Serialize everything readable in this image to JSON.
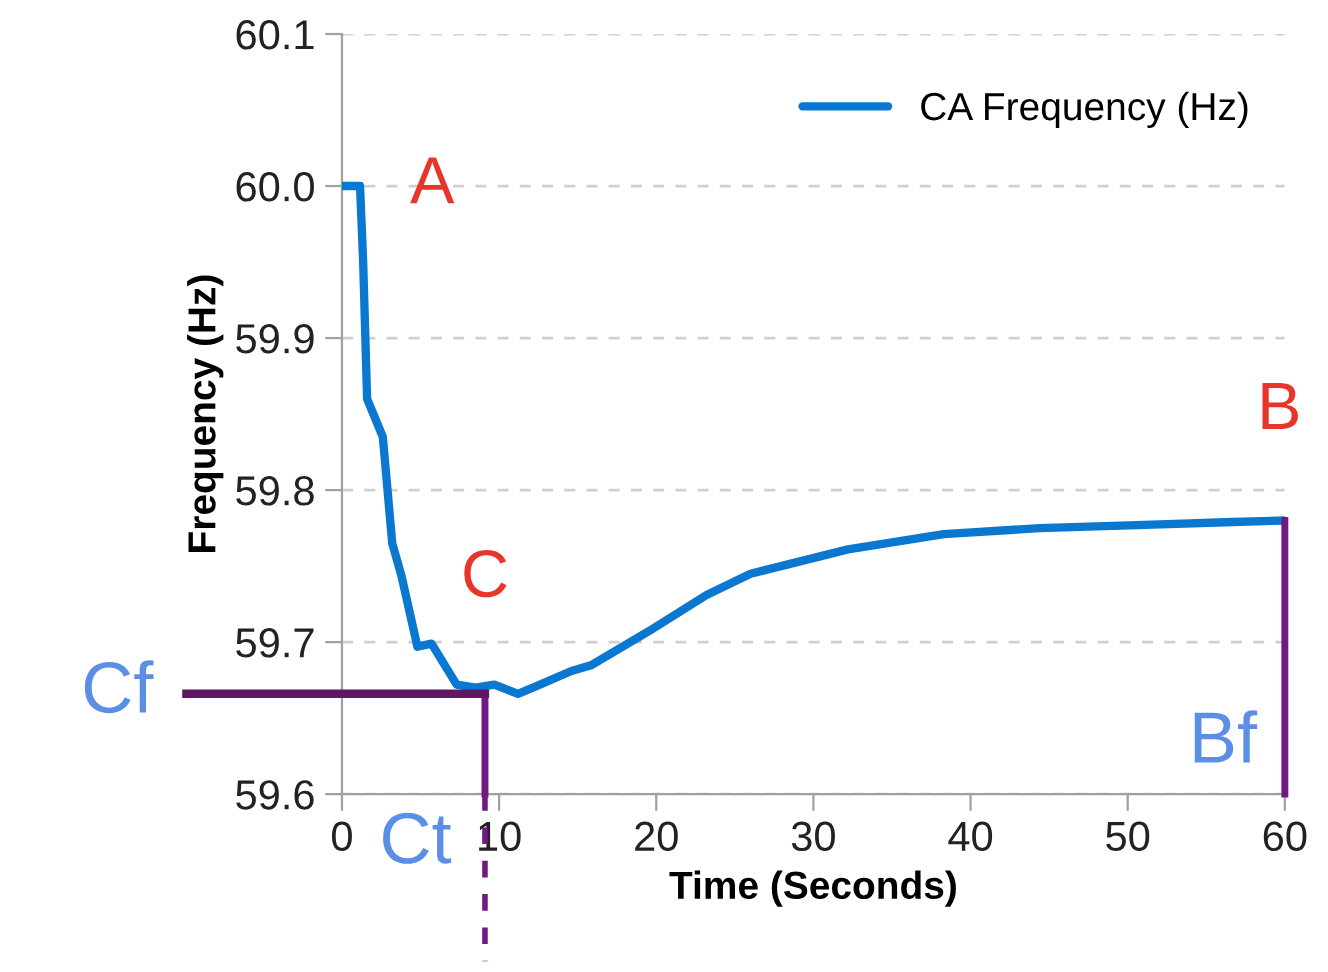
{
  "chart_data": {
    "type": "line",
    "xlabel": "Time (Seconds)",
    "ylabel": "Frequency (Hz)",
    "series": [
      {
        "name": "CA Frequency (Hz)",
        "color": "#0a78d0",
        "x": [
          0,
          1.15,
          1.35,
          1.6,
          2.6,
          3.2,
          3.8,
          4.8,
          5.7,
          7.3,
          8.5,
          9.7,
          11.2,
          12.6,
          14.6,
          15.9,
          19.5,
          23.2,
          26,
          32.2,
          38.3,
          44.4,
          50.6,
          56.7,
          60
        ],
        "values": [
          60.0,
          60.0,
          59.95,
          59.86,
          59.835,
          59.765,
          59.743,
          59.697,
          59.699,
          59.672,
          59.67,
          59.672,
          59.666,
          59.672,
          59.681,
          59.685,
          59.707,
          59.731,
          59.745,
          59.761,
          59.771,
          59.775,
          59.777,
          59.779,
          59.78
        ]
      }
    ],
    "xlim": [
      0,
      60
    ],
    "ylim": [
      59.6,
      60.1
    ],
    "xticks": [
      0,
      10,
      20,
      30,
      40,
      50,
      60
    ],
    "yticks": [
      {
        "value": 59.6,
        "label": "59.6"
      },
      {
        "value": 59.7,
        "label": "59.7"
      },
      {
        "value": 59.8,
        "label": "59.8"
      },
      {
        "value": 59.9,
        "label": "59.9"
      },
      {
        "value": 60.0,
        "label": "60.0"
      },
      {
        "value": 60.1,
        "label": "60.1"
      }
    ],
    "grid": "y",
    "legend": "top right",
    "marker": "none",
    "line_style": "solid",
    "ref_lines": [
      {
        "axis": "y",
        "value": 59.666,
        "label": "Cf",
        "color": "#5e1763"
      },
      {
        "axis": "x",
        "value": 9.1,
        "label": "Ct",
        "color": "#6f1a80"
      },
      {
        "axis": "x",
        "value": 60,
        "label": "Bf",
        "color": "#6f1a80"
      }
    ],
    "annotations": [
      {
        "text": "A",
        "x": 1.15,
        "y": 60.0
      },
      {
        "text": "C",
        "x": 9.1,
        "y": 59.666
      },
      {
        "text": "B",
        "x": 60,
        "y": 59.78
      }
    ]
  }
}
